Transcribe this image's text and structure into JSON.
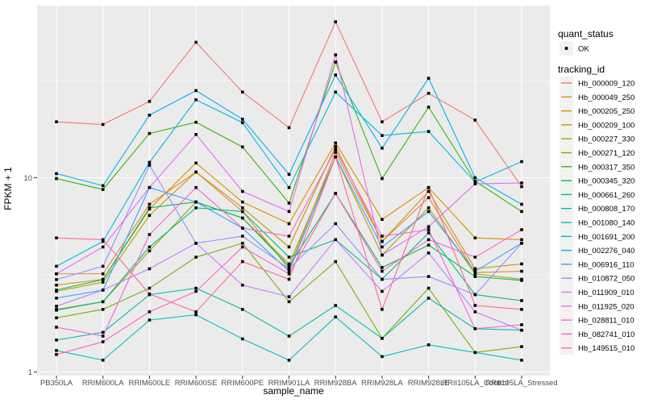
{
  "chart_data": {
    "type": "line",
    "title": "",
    "xlabel": "sample_name",
    "ylabel": "FPKM + 1",
    "y_scale": "log10",
    "y_ticks": [
      1,
      10
    ],
    "y_minor_gridlines": [
      3.1623,
      31.623
    ],
    "ylim": [
      1,
      80
    ],
    "x_categories": [
      "PB350LA",
      "RRIM600LA",
      "RRIM600LE",
      "RRIM600SE",
      "RRIM600PE",
      "RRIM901LA",
      "RRIM928BA",
      "RRIM928LA",
      "RRIM928LE",
      "RRII105LA_Control",
      "RRII105LA_Stressed"
    ],
    "legend": {
      "quant_status_title": "quant_status",
      "quant_status_items": [
        {
          "label": "OK",
          "marker": "black-square-point"
        }
      ],
      "tracking_id_title": "tracking_id"
    },
    "marker": {
      "shape": "square",
      "color": "#000000",
      "size": 3.6
    },
    "series": [
      {
        "name": "Hb_000009_120",
        "color": "#F8766D",
        "values": [
          19.4,
          18.8,
          24.7,
          49.8,
          27.6,
          18.1,
          63.5,
          19.4,
          27.2,
          19.8,
          9.0
        ]
      },
      {
        "name": "Hb_000049_250",
        "color": "#EA8331",
        "values": [
          3.2,
          3.2,
          7.3,
          10.7,
          6.7,
          3.4,
          13.5,
          4.7,
          7.9,
          3.25,
          3.3
        ]
      },
      {
        "name": "Hb_000205_250",
        "color": "#D89000",
        "values": [
          2.8,
          3.0,
          6.9,
          11.9,
          7.5,
          5.8,
          15.1,
          6.1,
          8.9,
          4.9,
          4.8
        ]
      },
      {
        "name": "Hb_000209_100",
        "color": "#C09B00",
        "values": [
          2.6,
          2.9,
          6.4,
          10.7,
          7.0,
          4.4,
          14.5,
          4.7,
          8.5,
          3.4,
          3.6
        ]
      },
      {
        "name": "Hb_000227_330",
        "color": "#A3A500",
        "values": [
          2.1,
          2.3,
          4.2,
          7.5,
          6.2,
          3.6,
          12.8,
          4.0,
          7.0,
          3.2,
          3.0
        ]
      },
      {
        "name": "Hb_000271_120",
        "color": "#7CAE00",
        "values": [
          1.9,
          2.1,
          2.7,
          3.9,
          4.6,
          2.3,
          3.7,
          1.49,
          2.7,
          1.26,
          1.35
        ]
      },
      {
        "name": "Hb_000317_350",
        "color": "#39B600",
        "values": [
          9.9,
          8.7,
          16.9,
          19.3,
          14.4,
          7.4,
          39.4,
          9.9,
          23.1,
          9.6,
          6.7
        ]
      },
      {
        "name": "Hb_000345_320",
        "color": "#00BB4E",
        "values": [
          2.64,
          2.99,
          7.0,
          7.5,
          6.2,
          3.5,
          8.3,
          3.45,
          4.5,
          3.1,
          2.96
        ]
      },
      {
        "name": "Hb_000661_260",
        "color": "#00BF7D",
        "values": [
          2.08,
          2.3,
          4.4,
          7.0,
          6.7,
          3.9,
          4.8,
          3.0,
          5.2,
          2.5,
          2.33
        ]
      },
      {
        "name": "Hb_000808_170",
        "color": "#00C1A3",
        "values": [
          1.46,
          1.6,
          2.5,
          2.7,
          2.1,
          1.53,
          2.2,
          1.49,
          2.4,
          1.67,
          1.64
        ]
      },
      {
        "name": "Hb_001080_140",
        "color": "#00BFC4",
        "values": [
          1.29,
          1.15,
          1.85,
          1.97,
          1.48,
          1.15,
          1.92,
          1.2,
          1.38,
          1.26,
          1.15
        ]
      },
      {
        "name": "Hb_001691_200",
        "color": "#00BAE0",
        "values": [
          3.5,
          4.7,
          12.0,
          25.2,
          19.2,
          8.9,
          27.6,
          16.5,
          17.3,
          9.5,
          12.1
        ]
      },
      {
        "name": "Hb_002276_040",
        "color": "#00B0F6",
        "values": [
          10.5,
          9.1,
          21.0,
          28.1,
          20.0,
          10.4,
          33.8,
          14.2,
          32.5,
          10.0,
          7.3
        ]
      },
      {
        "name": "Hb_006916_110",
        "color": "#35A2FF",
        "values": [
          2.4,
          2.64,
          8.9,
          7.5,
          5.5,
          3.3,
          12.8,
          4.4,
          6.7,
          3.3,
          4.6
        ]
      },
      {
        "name": "Hb_010872_050",
        "color": "#9590FF",
        "values": [
          2.99,
          3.5,
          11.6,
          4.6,
          5.0,
          3.4,
          5.8,
          3.0,
          3.1,
          2.5,
          4.6
        ]
      },
      {
        "name": "Hb_011909_010",
        "color": "#C77CFF",
        "values": [
          2.18,
          2.64,
          3.4,
          4.6,
          2.8,
          2.44,
          4.8,
          2.6,
          4.1,
          2.04,
          1.64
        ]
      },
      {
        "name": "Hb_011925_020",
        "color": "#E76BF3",
        "values": [
          3.2,
          4.4,
          8.9,
          16.7,
          8.5,
          6.7,
          42.9,
          4.0,
          5.6,
          9.3,
          9.4
        ]
      },
      {
        "name": "Hb_028811_010",
        "color": "#FA62DB",
        "values": [
          1.7,
          1.53,
          5.1,
          8.9,
          5.5,
          5.0,
          14.0,
          5.0,
          5.4,
          1.67,
          1.75
        ]
      },
      {
        "name": "Hb_082741_010",
        "color": "#FF61CC",
        "values": [
          1.23,
          1.43,
          2.04,
          2.6,
          4.4,
          3.2,
          8.3,
          3.3,
          4.8,
          3.9,
          5.4
        ]
      },
      {
        "name": "Hb_149515_010",
        "color": "#FF6A98",
        "values": [
          4.9,
          4.8,
          2.52,
          2.04,
          3.7,
          3.0,
          12.8,
          2.1,
          8.9,
          2.2,
          2.1
        ]
      }
    ]
  },
  "style": {
    "panel_bg": "#EBEBEB",
    "grid_color": "#FFFFFF",
    "axis_text_color": "#4D4D4D",
    "title_color": "#000000",
    "legend_key_bg": "#F2F2F2",
    "tick_color": "#333333",
    "point_color": "#000000"
  }
}
